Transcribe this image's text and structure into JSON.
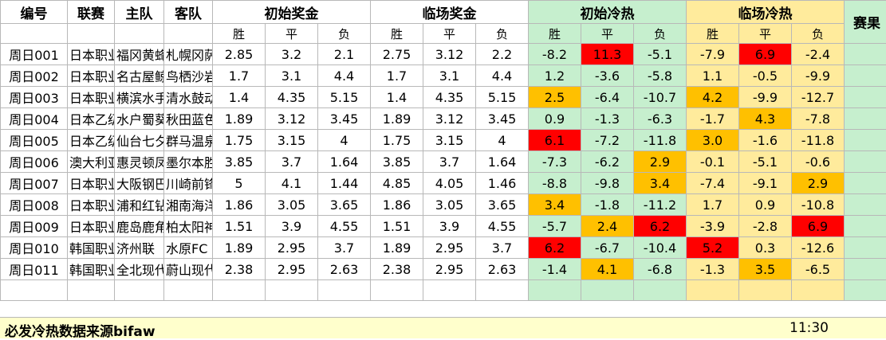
{
  "headers": {
    "row1": [
      "编号",
      "联赛",
      "主队",
      "客队",
      "初始奖金",
      "临场奖金",
      "初始冷热",
      "临场冷热",
      "赛果"
    ],
    "row2": [
      "胜",
      "平",
      "负",
      "胜",
      "平",
      "负",
      "胜",
      "平",
      "负",
      "胜",
      "平",
      "负"
    ]
  },
  "rows": [
    {
      "id": "周日001",
      "league": "日本职业",
      "home": "福冈黄蜂",
      "away": "札幌冈萨",
      "init": [
        "2.85",
        "3.2",
        "2.1"
      ],
      "live": [
        "2.75",
        "3.12",
        "2.2"
      ],
      "init_heat": [
        "-8.2",
        "11.3",
        "-5.1"
      ],
      "live_heat": [
        "-7.9",
        "6.9",
        "-2.4"
      ],
      "init_hl": [
        "",
        "red",
        ""
      ],
      "live_hl": [
        "",
        "red",
        ""
      ]
    },
    {
      "id": "周日002",
      "league": "日本职业",
      "home": "名古屋鲸",
      "away": "鸟栖沙岩",
      "init": [
        "1.7",
        "3.1",
        "4.4"
      ],
      "live": [
        "1.7",
        "3.1",
        "4.4"
      ],
      "init_heat": [
        "1.2",
        "-3.6",
        "-5.8"
      ],
      "live_heat": [
        "1.1",
        "-0.5",
        "-9.9"
      ],
      "init_hl": [
        "",
        "",
        ""
      ],
      "live_hl": [
        "",
        "",
        ""
      ]
    },
    {
      "id": "周日003",
      "league": "日本职业",
      "home": "横滨水手",
      "away": "清水鼓动",
      "init": [
        "1.4",
        "4.35",
        "5.15"
      ],
      "live": [
        "1.4",
        "4.35",
        "5.15"
      ],
      "init_heat": [
        "2.5",
        "-6.4",
        "-10.7"
      ],
      "live_heat": [
        "4.2",
        "-9.9",
        "-12.7"
      ],
      "init_hl": [
        "orange",
        "",
        ""
      ],
      "live_hl": [
        "orange",
        "",
        ""
      ]
    },
    {
      "id": "周日004",
      "league": "日本乙级",
      "home": "水户蜀葵",
      "away": "秋田蓝色",
      "init": [
        "1.89",
        "3.12",
        "3.45"
      ],
      "live": [
        "1.89",
        "3.12",
        "3.45"
      ],
      "init_heat": [
        "0.9",
        "-1.3",
        "-6.3"
      ],
      "live_heat": [
        "-1.7",
        "4.3",
        "-7.8"
      ],
      "init_hl": [
        "",
        "",
        ""
      ],
      "live_hl": [
        "",
        "orange",
        ""
      ]
    },
    {
      "id": "周日005",
      "league": "日本乙级",
      "home": "仙台七夕",
      "away": "群马温泉",
      "init": [
        "1.75",
        "3.15",
        "4"
      ],
      "live": [
        "1.75",
        "3.15",
        "4"
      ],
      "init_heat": [
        "6.1",
        "-7.2",
        "-11.8"
      ],
      "live_heat": [
        "3.0",
        "-1.6",
        "-11.8"
      ],
      "init_hl": [
        "red",
        "",
        ""
      ],
      "live_hl": [
        "orange",
        "",
        ""
      ]
    },
    {
      "id": "周日006",
      "league": "澳大利亚",
      "home": "惠灵顿凤",
      "away": "墨尔本胜",
      "init": [
        "3.85",
        "3.7",
        "1.64"
      ],
      "live": [
        "3.85",
        "3.7",
        "1.64"
      ],
      "init_heat": [
        "-7.3",
        "-6.2",
        "2.9"
      ],
      "live_heat": [
        "-0.1",
        "-5.1",
        "-0.6"
      ],
      "init_hl": [
        "",
        "",
        "orange"
      ],
      "live_hl": [
        "",
        "",
        ""
      ]
    },
    {
      "id": "周日007",
      "league": "日本职业",
      "home": "大阪钢巴",
      "away": "川崎前锋",
      "init": [
        "5",
        "4.1",
        "1.44"
      ],
      "live": [
        "4.85",
        "4.05",
        "1.46"
      ],
      "init_heat": [
        "-8.8",
        "-9.8",
        "3.4"
      ],
      "live_heat": [
        "-7.4",
        "-9.1",
        "2.9"
      ],
      "init_hl": [
        "",
        "",
        "orange"
      ],
      "live_hl": [
        "",
        "",
        "orange"
      ]
    },
    {
      "id": "周日008",
      "league": "日本职业",
      "home": "浦和红钻",
      "away": "湘南海洋",
      "init": [
        "1.86",
        "3.05",
        "3.65"
      ],
      "live": [
        "1.86",
        "3.05",
        "3.65"
      ],
      "init_heat": [
        "3.4",
        "-1.8",
        "-11.2"
      ],
      "live_heat": [
        "1.7",
        "0.9",
        "-10.8"
      ],
      "init_hl": [
        "orange",
        "",
        ""
      ],
      "live_hl": [
        "",
        "",
        ""
      ]
    },
    {
      "id": "周日009",
      "league": "日本职业",
      "home": "鹿岛鹿角",
      "away": "柏太阳神",
      "init": [
        "1.51",
        "3.9",
        "4.55"
      ],
      "live": [
        "1.51",
        "3.9",
        "4.55"
      ],
      "init_heat": [
        "-5.7",
        "2.4",
        "6.2"
      ],
      "live_heat": [
        "-3.9",
        "-2.8",
        "6.9"
      ],
      "init_hl": [
        "",
        "orange",
        "red"
      ],
      "live_hl": [
        "",
        "",
        "red"
      ]
    },
    {
      "id": "周日010",
      "league": "韩国职业",
      "home": "济州联",
      "away": "水原FC",
      "init": [
        "1.89",
        "2.95",
        "3.7"
      ],
      "live": [
        "1.89",
        "2.95",
        "3.7"
      ],
      "init_heat": [
        "6.2",
        "-6.7",
        "-10.4"
      ],
      "live_heat": [
        "5.2",
        "0.3",
        "-12.6"
      ],
      "init_hl": [
        "red",
        "",
        ""
      ],
      "live_hl": [
        "red",
        "",
        ""
      ]
    },
    {
      "id": "周日011",
      "league": "韩国职业",
      "home": "全北现代",
      "away": "蔚山现代",
      "init": [
        "2.38",
        "2.95",
        "2.63"
      ],
      "live": [
        "2.38",
        "2.95",
        "2.63"
      ],
      "init_heat": [
        "-1.4",
        "4.1",
        "-6.8"
      ],
      "live_heat": [
        "-1.3",
        "3.5",
        "-6.5"
      ],
      "init_hl": [
        "",
        "orange",
        ""
      ],
      "live_hl": [
        "",
        "orange",
        ""
      ]
    }
  ],
  "footer": {
    "note": "必发冷热数据来源bifaw",
    "time": "11:30"
  },
  "colors": {
    "green": "#c6efce",
    "yellow": "#ffeb9c",
    "orange": "#ffc000",
    "red": "#ff0000",
    "footer_bg": "#ffffcc"
  }
}
